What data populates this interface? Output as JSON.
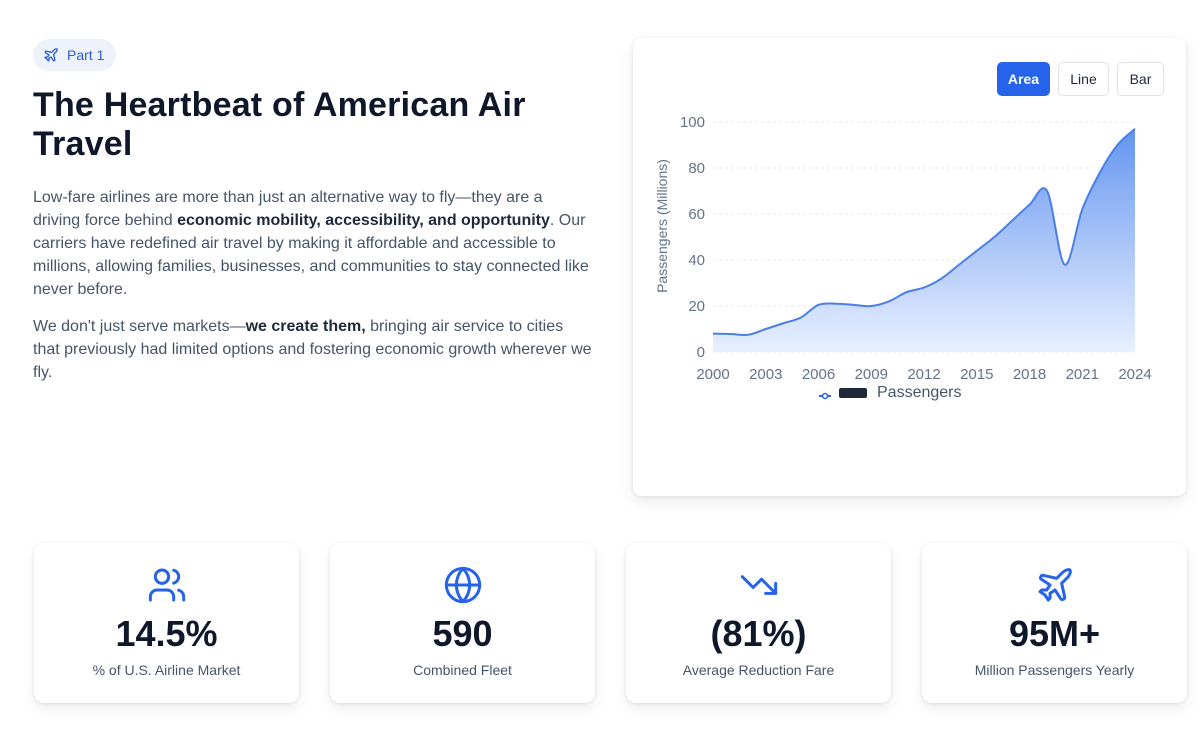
{
  "badge": {
    "label": "Part 1",
    "icon": "plane-icon"
  },
  "title": "The Heartbeat of American Air Travel",
  "paragraph1": {
    "before": "Low-fare airlines are more than just an alternative way to fly—they are a driving force behind ",
    "bold": "economic mobility, accessibility, and opportunity",
    "after": ". Our carriers have redefined air travel by making it affordable and accessible to millions, allowing families, businesses, and communities to stay connected like never before."
  },
  "paragraph2": {
    "before": "We don't just serve markets—",
    "bold": "we create them,",
    "after": " bringing air service to cities that previously had limited options and fostering economic growth wherever we fly."
  },
  "chart_toggle": {
    "area": "Area",
    "line": "Line",
    "bar": "Bar",
    "selected": "Area"
  },
  "colors": {
    "accent": "#2563eb",
    "fill_top": "#5b8fef",
    "fill_bottom": "#e6eeff"
  },
  "chart_data": {
    "type": "area",
    "ylabel": "Passengers (Millions)",
    "xlabel": "",
    "legend": {
      "label": "Passengers",
      "position": "bottom"
    },
    "ylim": [
      0,
      100
    ],
    "yticks": [
      0,
      20,
      40,
      60,
      80,
      100
    ],
    "xticks": [
      "2000",
      "2003",
      "2006",
      "2009",
      "2012",
      "2015",
      "2018",
      "2021",
      "2024"
    ],
    "grid": true,
    "x": [
      2000,
      2001,
      2002,
      2003,
      2004,
      2005,
      2006,
      2007,
      2008,
      2009,
      2010,
      2011,
      2012,
      2013,
      2014,
      2015,
      2016,
      2017,
      2018,
      2019,
      2020,
      2021,
      2022,
      2023,
      2024
    ],
    "values": [
      8,
      7.8,
      7.5,
      10,
      12.5,
      15,
      20.5,
      21,
      20.5,
      20,
      22,
      26,
      28,
      32,
      38,
      44,
      50,
      57,
      64,
      70,
      38,
      62,
      78,
      90,
      97
    ]
  },
  "stats": [
    {
      "icon": "users-icon",
      "value": "14.5%",
      "label": "% of U.S. Airline Market"
    },
    {
      "icon": "globe-icon",
      "value": "590",
      "label": "Combined Fleet"
    },
    {
      "icon": "trending-down-icon",
      "value": "(81%)",
      "label": "Average Reduction Fare"
    },
    {
      "icon": "plane-icon",
      "value": "95M+",
      "label": "Million Passengers Yearly"
    }
  ]
}
